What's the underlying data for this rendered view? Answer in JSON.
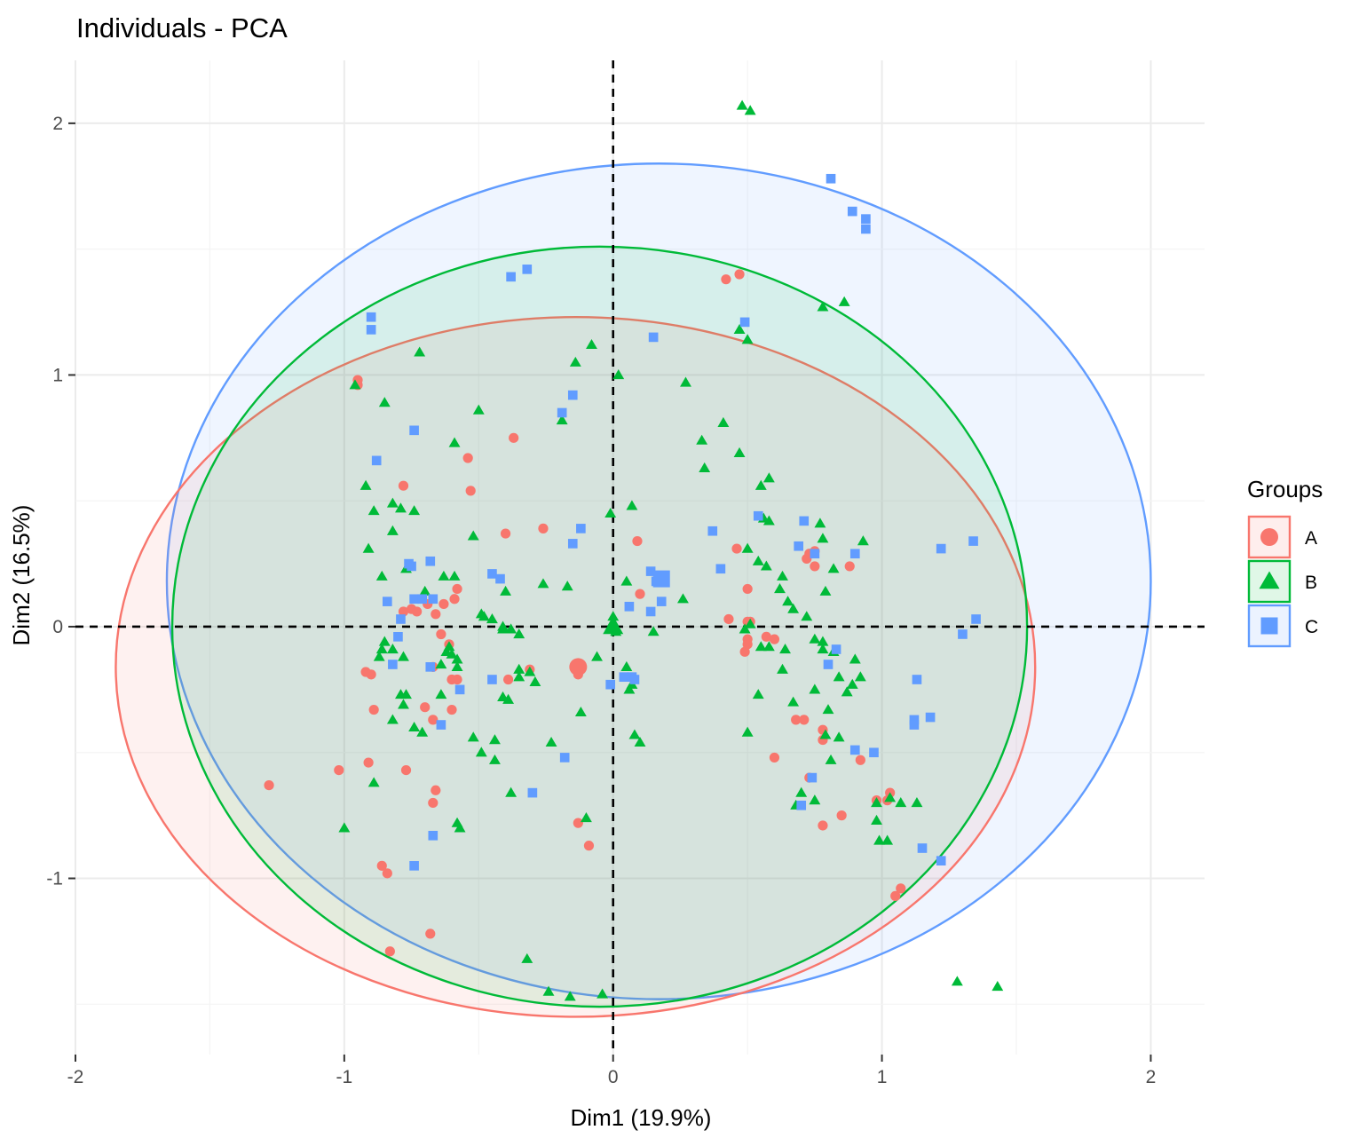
{
  "chart_data": {
    "type": "scatter",
    "title": "Individuals - PCA",
    "xlabel": "Dim1 (19.9%)",
    "ylabel": "Dim2 (16.5%)",
    "xlim": [
      -2.0,
      2.2
    ],
    "ylim": [
      -1.7,
      2.25
    ],
    "xticks": [
      -2,
      -1,
      0,
      1,
      2
    ],
    "xtick_labels": [
      "-2",
      "-1",
      "0",
      "1",
      "2"
    ],
    "yticks": [
      -1,
      0,
      1,
      2
    ],
    "ytick_labels": [
      "-1",
      "0",
      "1",
      "2"
    ],
    "grid": true,
    "reference_lines": [
      {
        "axis": "x",
        "value": 0
      },
      {
        "axis": "y",
        "value": 0
      }
    ],
    "legend": {
      "title": "Groups",
      "position": "right"
    },
    "series": [
      {
        "name": "A",
        "marker": "circle",
        "color": "#F8766D",
        "centroid": [
          -0.13,
          -0.16
        ],
        "ellipse": {
          "cx": -0.14,
          "cy": -0.16,
          "rx": 1.71,
          "ry": 1.39
        },
        "points": [
          [
            -0.95,
            0.98
          ],
          [
            -0.95,
            0.96
          ],
          [
            -0.92,
            -0.18
          ],
          [
            -0.9,
            -0.19
          ],
          [
            -0.89,
            -0.33
          ],
          [
            -1.28,
            -0.63
          ],
          [
            -1.02,
            -0.57
          ],
          [
            -0.91,
            -0.54
          ],
          [
            -0.78,
            0.06
          ],
          [
            -0.75,
            0.07
          ],
          [
            -0.73,
            0.06
          ],
          [
            -0.69,
            0.09
          ],
          [
            -0.66,
            0.05
          ],
          [
            -0.63,
            0.09
          ],
          [
            -0.59,
            0.11
          ],
          [
            -0.58,
            0.15
          ],
          [
            -0.64,
            -0.03
          ],
          [
            -0.61,
            -0.07
          ],
          [
            -0.67,
            -0.16
          ],
          [
            -0.6,
            -0.21
          ],
          [
            -0.58,
            -0.21
          ],
          [
            -0.7,
            -0.32
          ],
          [
            -0.6,
            -0.33
          ],
          [
            -0.67,
            -0.37
          ],
          [
            -0.78,
            0.56
          ],
          [
            -0.54,
            0.67
          ],
          [
            -0.53,
            0.54
          ],
          [
            -0.37,
            0.75
          ],
          [
            -0.4,
            0.37
          ],
          [
            -0.26,
            0.39
          ],
          [
            -0.39,
            -0.21
          ],
          [
            -0.31,
            -0.17
          ],
          [
            -0.13,
            -0.19
          ],
          [
            0.09,
            0.34
          ],
          [
            0.1,
            0.13
          ],
          [
            -0.77,
            -0.57
          ],
          [
            -0.66,
            -0.65
          ],
          [
            -0.67,
            -0.7
          ],
          [
            -0.86,
            -0.95
          ],
          [
            -0.84,
            -0.98
          ],
          [
            -0.68,
            -1.22
          ],
          [
            -0.83,
            -1.29
          ],
          [
            -0.13,
            -0.78
          ],
          [
            -0.09,
            -0.87
          ],
          [
            0.47,
            1.4
          ],
          [
            0.42,
            1.38
          ],
          [
            0.46,
            0.31
          ],
          [
            0.5,
            0.02
          ],
          [
            0.43,
            0.03
          ],
          [
            0.51,
            0.02
          ],
          [
            0.5,
            -0.05
          ],
          [
            0.5,
            -0.07
          ],
          [
            0.49,
            -0.1
          ],
          [
            0.57,
            -0.04
          ],
          [
            0.75,
            0.24
          ],
          [
            0.73,
            0.29
          ],
          [
            0.75,
            0.3
          ],
          [
            0.72,
            0.27
          ],
          [
            0.88,
            0.24
          ],
          [
            0.5,
            0.15
          ],
          [
            0.6,
            -0.05
          ],
          [
            0.6,
            -0.52
          ],
          [
            0.68,
            -0.37
          ],
          [
            0.71,
            -0.37
          ],
          [
            0.78,
            -0.41
          ],
          [
            0.78,
            -0.45
          ],
          [
            0.73,
            -0.6
          ],
          [
            0.78,
            -0.79
          ],
          [
            0.85,
            -0.75
          ],
          [
            0.92,
            -0.53
          ],
          [
            0.98,
            -0.69
          ],
          [
            1.02,
            -0.69
          ],
          [
            1.03,
            -0.66
          ],
          [
            1.07,
            -1.04
          ],
          [
            1.05,
            -1.07
          ]
        ]
      },
      {
        "name": "B",
        "marker": "triangle",
        "color": "#00BA38",
        "centroid": [
          0.0,
          0.0
        ],
        "ellipse": {
          "cx": -0.05,
          "cy": 0.0,
          "rx": 1.59,
          "ry": 1.51
        },
        "points": [
          [
            0.48,
            2.07
          ],
          [
            0.51,
            2.05
          ],
          [
            0.86,
            1.29
          ],
          [
            0.78,
            1.27
          ],
          [
            0.47,
            1.18
          ],
          [
            0.5,
            1.14
          ],
          [
            -0.08,
            1.12
          ],
          [
            -0.14,
            1.05
          ],
          [
            0.02,
            1.0
          ],
          [
            0.27,
            0.97
          ],
          [
            -0.19,
            0.82
          ],
          [
            0.41,
            0.81
          ],
          [
            0.33,
            0.74
          ],
          [
            0.47,
            0.69
          ],
          [
            0.34,
            0.63
          ],
          [
            0.55,
            0.56
          ],
          [
            0.58,
            0.59
          ],
          [
            -0.72,
            1.09
          ],
          [
            -0.85,
            0.89
          ],
          [
            -0.5,
            0.86
          ],
          [
            -0.59,
            0.73
          ],
          [
            -0.92,
            0.56
          ],
          [
            -0.89,
            0.46
          ],
          [
            -0.82,
            0.49
          ],
          [
            -0.79,
            0.47
          ],
          [
            -0.74,
            0.46
          ],
          [
            -0.91,
            0.31
          ],
          [
            -0.82,
            0.38
          ],
          [
            -0.52,
            0.36
          ],
          [
            0.07,
            0.48
          ],
          [
            -0.01,
            0.45
          ],
          [
            0.56,
            0.43
          ],
          [
            0.58,
            0.42
          ],
          [
            0.77,
            0.41
          ],
          [
            0.78,
            0.35
          ],
          [
            0.93,
            0.34
          ],
          [
            0.5,
            0.31
          ],
          [
            0.54,
            0.26
          ],
          [
            0.57,
            0.24
          ],
          [
            0.82,
            0.23
          ],
          [
            0.63,
            0.2
          ],
          [
            0.79,
            0.14
          ],
          [
            0.62,
            0.15
          ],
          [
            0.65,
            0.1
          ],
          [
            0.67,
            0.07
          ],
          [
            0.72,
            0.04
          ],
          [
            0.75,
            -0.05
          ],
          [
            0.78,
            -0.09
          ],
          [
            0.51,
            0.01
          ],
          [
            0.49,
            -0.01
          ],
          [
            0.55,
            -0.08
          ],
          [
            0.58,
            -0.08
          ],
          [
            0.64,
            -0.09
          ],
          [
            0.54,
            -0.27
          ],
          [
            0.5,
            -0.42
          ],
          [
            0.63,
            -0.17
          ],
          [
            0.67,
            -0.3
          ],
          [
            0.75,
            -0.25
          ],
          [
            0.8,
            -0.33
          ],
          [
            0.79,
            -0.43
          ],
          [
            0.81,
            -0.53
          ],
          [
            0.84,
            -0.2
          ],
          [
            0.87,
            -0.26
          ],
          [
            0.89,
            -0.23
          ],
          [
            0.92,
            -0.2
          ],
          [
            0.9,
            -0.13
          ],
          [
            0.82,
            -0.1
          ],
          [
            0.78,
            -0.06
          ],
          [
            0.84,
            -0.44
          ],
          [
            0.7,
            -0.66
          ],
          [
            0.68,
            -0.71
          ],
          [
            0.75,
            -0.69
          ],
          [
            0.98,
            -0.7
          ],
          [
            0.98,
            -0.77
          ],
          [
            0.99,
            -0.85
          ],
          [
            1.02,
            -0.85
          ],
          [
            1.03,
            -0.68
          ],
          [
            1.07,
            -0.7
          ],
          [
            1.13,
            -0.7
          ],
          [
            1.28,
            -1.41
          ],
          [
            1.43,
            -1.43
          ],
          [
            -0.96,
            0.96
          ],
          [
            -0.85,
            -0.06
          ],
          [
            -0.86,
            -0.09
          ],
          [
            -0.87,
            -0.12
          ],
          [
            -0.82,
            -0.09
          ],
          [
            -0.78,
            -0.12
          ],
          [
            -0.77,
            0.23
          ],
          [
            -0.86,
            0.2
          ],
          [
            -0.7,
            0.14
          ],
          [
            -0.63,
            0.2
          ],
          [
            -0.59,
            0.2
          ],
          [
            -0.61,
            -0.08
          ],
          [
            -0.62,
            -0.1
          ],
          [
            -0.64,
            -0.15
          ],
          [
            -0.58,
            -0.13
          ],
          [
            -0.58,
            -0.16
          ],
          [
            -0.6,
            -0.11
          ],
          [
            -0.77,
            -0.27
          ],
          [
            -0.78,
            -0.31
          ],
          [
            -0.82,
            -0.37
          ],
          [
            -0.74,
            -0.4
          ],
          [
            -0.71,
            -0.42
          ],
          [
            -0.79,
            -0.27
          ],
          [
            -0.64,
            -0.27
          ],
          [
            -0.49,
            0.05
          ],
          [
            -0.48,
            0.04
          ],
          [
            -0.45,
            0.03
          ],
          [
            -0.41,
            0.0
          ],
          [
            -0.38,
            -0.01
          ],
          [
            -0.41,
            -0.01
          ],
          [
            -0.35,
            -0.03
          ],
          [
            -0.52,
            -0.44
          ],
          [
            -0.49,
            -0.5
          ],
          [
            -0.44,
            -0.45
          ],
          [
            -0.44,
            -0.53
          ],
          [
            -0.35,
            -0.17
          ],
          [
            -0.31,
            -0.18
          ],
          [
            -0.29,
            -0.22
          ],
          [
            -0.41,
            -0.28
          ],
          [
            -0.39,
            -0.29
          ],
          [
            -0.35,
            -0.2
          ],
          [
            -0.17,
            0.16
          ],
          [
            -0.26,
            0.17
          ],
          [
            -0.4,
            0.14
          ],
          [
            -0.12,
            -0.34
          ],
          [
            -0.23,
            -0.46
          ],
          [
            -0.38,
            -0.66
          ],
          [
            -0.06,
            -0.12
          ],
          [
            -0.1,
            -0.76
          ],
          [
            -0.01,
            0.0
          ],
          [
            0.0,
            0.02
          ],
          [
            0.05,
            0.18
          ],
          [
            0.05,
            -0.16
          ],
          [
            0.07,
            -0.23
          ],
          [
            0.06,
            -0.25
          ],
          [
            0.08,
            -0.43
          ],
          [
            0.1,
            -0.46
          ],
          [
            0.15,
            -0.02
          ],
          [
            0.26,
            0.11
          ],
          [
            -0.57,
            -0.8
          ],
          [
            -0.58,
            -0.78
          ],
          [
            -1.0,
            -0.8
          ],
          [
            -0.89,
            -0.62
          ],
          [
            -0.32,
            -1.32
          ],
          [
            -0.24,
            -1.45
          ],
          [
            -0.16,
            -1.47
          ],
          [
            -0.04,
            -1.46
          ],
          [
            0.0,
            0.04
          ],
          [
            0.01,
            -0.02
          ]
        ]
      },
      {
        "name": "C",
        "marker": "square",
        "color": "#619CFF",
        "centroid": [
          0.18,
          0.19
        ],
        "ellipse": {
          "cx": 0.17,
          "cy": 0.18,
          "rx": 1.83,
          "ry": 1.66
        },
        "points": [
          [
            0.81,
            1.78
          ],
          [
            0.89,
            1.65
          ],
          [
            0.94,
            1.62
          ],
          [
            0.94,
            1.58
          ],
          [
            -0.38,
            1.39
          ],
          [
            -0.32,
            1.42
          ],
          [
            -0.9,
            1.23
          ],
          [
            -0.9,
            1.18
          ],
          [
            0.49,
            1.21
          ],
          [
            0.15,
            1.15
          ],
          [
            -0.15,
            0.92
          ],
          [
            -0.19,
            0.85
          ],
          [
            -0.74,
            0.78
          ],
          [
            -0.88,
            0.66
          ],
          [
            -0.12,
            0.39
          ],
          [
            -0.15,
            0.33
          ],
          [
            0.37,
            0.38
          ],
          [
            0.54,
            0.44
          ],
          [
            0.71,
            0.42
          ],
          [
            0.69,
            0.32
          ],
          [
            0.75,
            0.29
          ],
          [
            0.9,
            0.29
          ],
          [
            1.22,
            0.31
          ],
          [
            1.34,
            0.34
          ],
          [
            0.4,
            0.23
          ],
          [
            0.14,
            0.22
          ],
          [
            0.16,
            0.18
          ],
          [
            0.19,
            0.2
          ],
          [
            0.18,
            0.1
          ],
          [
            0.14,
            0.06
          ],
          [
            0.06,
            0.08
          ],
          [
            -0.75,
            0.24
          ],
          [
            -0.74,
            0.11
          ],
          [
            -0.71,
            0.11
          ],
          [
            -0.68,
            0.26
          ],
          [
            -0.67,
            0.11
          ],
          [
            -0.45,
            0.21
          ],
          [
            -0.42,
            0.19
          ],
          [
            -0.84,
            0.1
          ],
          [
            -0.79,
            0.03
          ],
          [
            -0.76,
            0.25
          ],
          [
            -0.8,
            -0.04
          ],
          [
            -0.68,
            -0.16
          ],
          [
            -0.57,
            -0.25
          ],
          [
            -0.82,
            -0.15
          ],
          [
            -0.45,
            -0.21
          ],
          [
            -0.3,
            -0.66
          ],
          [
            -0.18,
            -0.52
          ],
          [
            -0.64,
            -0.39
          ],
          [
            -0.67,
            -0.83
          ],
          [
            -0.74,
            -0.95
          ],
          [
            0.04,
            -0.2
          ],
          [
            0.07,
            -0.2
          ],
          [
            0.08,
            -0.21
          ],
          [
            -0.01,
            -0.23
          ],
          [
            0.83,
            -0.09
          ],
          [
            0.8,
            -0.15
          ],
          [
            1.35,
            0.03
          ],
          [
            1.3,
            -0.03
          ],
          [
            1.13,
            -0.21
          ],
          [
            1.12,
            -0.37
          ],
          [
            1.12,
            -0.39
          ],
          [
            1.18,
            -0.36
          ],
          [
            0.97,
            -0.5
          ],
          [
            0.9,
            -0.49
          ],
          [
            0.74,
            -0.6
          ],
          [
            0.7,
            -0.71
          ],
          [
            1.15,
            -0.88
          ],
          [
            1.22,
            -0.93
          ]
        ]
      }
    ]
  }
}
